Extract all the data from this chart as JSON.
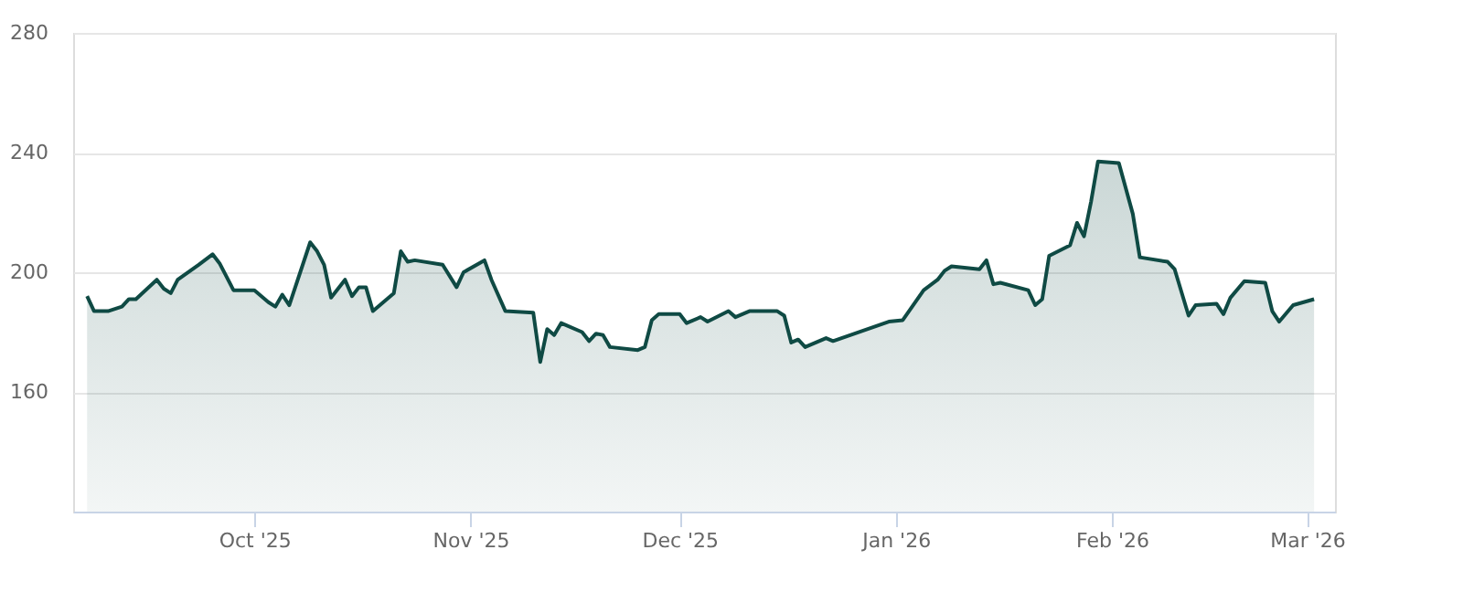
{
  "chart_data": {
    "type": "area",
    "x": [
      "2025-09-07",
      "2025-09-08",
      "2025-09-10",
      "2025-09-12",
      "2025-09-13",
      "2025-09-14",
      "2025-09-17",
      "2025-09-18",
      "2025-09-19",
      "2025-09-20",
      "2025-09-23",
      "2025-09-25",
      "2025-09-26",
      "2025-09-28",
      "2025-10-01",
      "2025-10-03",
      "2025-10-04",
      "2025-10-05",
      "2025-10-06",
      "2025-10-09",
      "2025-10-10",
      "2025-10-11",
      "2025-10-12",
      "2025-10-14",
      "2025-10-15",
      "2025-10-16",
      "2025-10-17",
      "2025-10-18",
      "2025-10-21",
      "2025-10-22",
      "2025-10-23",
      "2025-10-24",
      "2025-10-28",
      "2025-10-30",
      "2025-10-31",
      "2025-11-03",
      "2025-11-04",
      "2025-11-06",
      "2025-11-10",
      "2025-11-11",
      "2025-11-12",
      "2025-11-13",
      "2025-11-14",
      "2025-11-17",
      "2025-11-18",
      "2025-11-19",
      "2025-11-20",
      "2025-11-21",
      "2025-11-25",
      "2025-11-26",
      "2025-11-27",
      "2025-11-28",
      "2025-12-01",
      "2025-12-02",
      "2025-12-04",
      "2025-12-05",
      "2025-12-08",
      "2025-12-09",
      "2025-12-11",
      "2025-12-15",
      "2025-12-16",
      "2025-12-17",
      "2025-12-18",
      "2025-12-19",
      "2025-12-22",
      "2025-12-23",
      "2025-12-31",
      "2026-01-02",
      "2026-01-05",
      "2026-01-07",
      "2026-01-08",
      "2026-01-09",
      "2026-01-13",
      "2026-01-14",
      "2026-01-15",
      "2026-01-16",
      "2026-01-20",
      "2026-01-21",
      "2026-01-22",
      "2026-01-23",
      "2026-01-26",
      "2026-01-27",
      "2026-01-28",
      "2026-01-29",
      "2026-01-30",
      "2026-02-02",
      "2026-02-04",
      "2026-02-05",
      "2026-02-09",
      "2026-02-10",
      "2026-02-12",
      "2026-02-13",
      "2026-02-16",
      "2026-02-17",
      "2026-02-18",
      "2026-02-20",
      "2026-02-23",
      "2026-02-24",
      "2026-02-25",
      "2026-02-27",
      "2026-03-02"
    ],
    "series": [
      {
        "color": "#0f4a44",
        "values": [
          192,
          187,
          187,
          188.5,
          191,
          191,
          197.5,
          194.5,
          193,
          197.5,
          202.5,
          206,
          203,
          194,
          194,
          190,
          188.5,
          192.5,
          189,
          210,
          207,
          202.5,
          191.5,
          197.5,
          192,
          195,
          195,
          187,
          193,
          207,
          203.5,
          204,
          202.5,
          195,
          200,
          204,
          197.5,
          187,
          186.5,
          170,
          181,
          179,
          183,
          180,
          177,
          179.5,
          179,
          175,
          174,
          175,
          184,
          186,
          186,
          183,
          185,
          183.5,
          187,
          185,
          187,
          187,
          185.5,
          176.5,
          177.5,
          175,
          178,
          177,
          183.5,
          184,
          194,
          197.5,
          200.5,
          202,
          201,
          204,
          196,
          196.5,
          194,
          189,
          191,
          205.5,
          209,
          216.5,
          212,
          223.5,
          237,
          236.5,
          219.5,
          205,
          203.5,
          201,
          185.5,
          189,
          189.5,
          186,
          191.5,
          197,
          196.5,
          187,
          183.5,
          189,
          191
        ]
      }
    ],
    "xlim": [
      "2025-09-05",
      "2026-03-05"
    ],
    "xticks": [
      {
        "value": "2025-10-01",
        "label": "Oct '25"
      },
      {
        "value": "2025-11-01",
        "label": "Nov '25"
      },
      {
        "value": "2025-12-01",
        "label": "Dec '25"
      },
      {
        "value": "2026-01-01",
        "label": "Jan '26"
      },
      {
        "value": "2026-02-01",
        "label": "Feb '26"
      },
      {
        "value": "2026-03-01",
        "label": "Mar '26"
      }
    ],
    "ylim": [
      120,
      280
    ],
    "yticks": [
      160,
      200,
      240,
      280
    ],
    "grid": "y",
    "legend": false
  }
}
